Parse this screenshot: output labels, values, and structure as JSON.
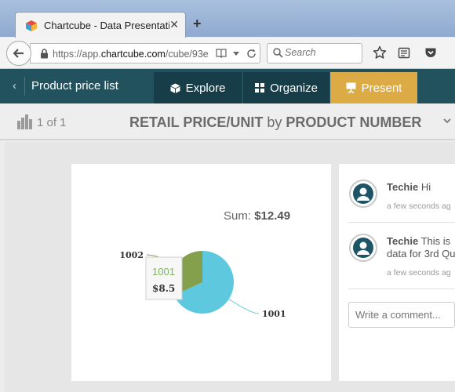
{
  "browser": {
    "tab_title": "Chartcube - Data Presentati...",
    "tab_close": "✕",
    "new_tab": "+",
    "url_prefix": "https://app.",
    "url_domain": "chartcube.com",
    "url_path": "/cube/93e",
    "search_placeholder": "Search"
  },
  "app": {
    "back_glyph": "‹",
    "title": "Product price list",
    "tabs": [
      {
        "label": "Explore",
        "icon": "cube-icon"
      },
      {
        "label": "Organize",
        "icon": "grid-icon"
      },
      {
        "label": "Present",
        "icon": "presentation-icon",
        "active": true
      }
    ]
  },
  "subheader": {
    "page_count": "1 of 1",
    "heading_part1": "RETAIL PRICE/UNIT",
    "heading_by": "by",
    "heading_part2": "PRODUCT NUMBER"
  },
  "chart": {
    "sum_label": "Sum:",
    "sum_value": "$12.49",
    "tooltip_category": "1001",
    "tooltip_value": "$8.5"
  },
  "chart_data": {
    "type": "pie",
    "title": "",
    "categories": [
      "1001",
      "1002"
    ],
    "values": [
      8.5,
      3.99
    ],
    "colors": [
      "#5ec8de",
      "#84a04c"
    ],
    "total": 12.49,
    "hovered": "1001"
  },
  "comments": [
    {
      "author": "Techie",
      "text": "Hi",
      "time": "a few seconds ag"
    },
    {
      "author": "Techie",
      "text": "This is data for 3rd Qu",
      "time": "a few seconds ag"
    }
  ],
  "comment_input_placeholder": "Write a comment..."
}
